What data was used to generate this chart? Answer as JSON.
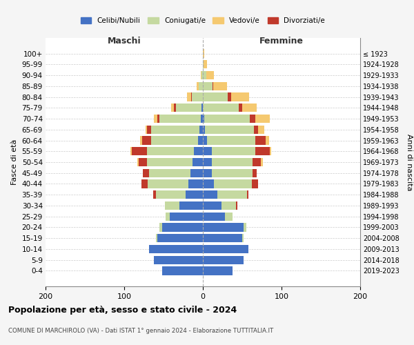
{
  "age_groups_bottom_to_top": [
    "0-4",
    "5-9",
    "10-14",
    "15-19",
    "20-24",
    "25-29",
    "30-34",
    "35-39",
    "40-44",
    "45-49",
    "50-54",
    "55-59",
    "60-64",
    "65-69",
    "70-74",
    "75-79",
    "80-84",
    "85-89",
    "90-94",
    "95-99",
    "100+"
  ],
  "birth_years_bottom_to_top": [
    "2019-2023",
    "2014-2018",
    "2009-2013",
    "2004-2008",
    "1999-2003",
    "1994-1998",
    "1989-1993",
    "1984-1988",
    "1979-1983",
    "1974-1978",
    "1969-1973",
    "1964-1968",
    "1959-1963",
    "1954-1958",
    "1949-1953",
    "1944-1948",
    "1939-1943",
    "1934-1938",
    "1929-1933",
    "1924-1928",
    "≤ 1923"
  ],
  "colors": {
    "celibi": "#4472C4",
    "coniugati": "#c5d9a0",
    "vedovi": "#f5c970",
    "divorziati": "#c0392b"
  },
  "maschi_celibi": [
    52,
    62,
    68,
    58,
    52,
    42,
    30,
    22,
    18,
    16,
    13,
    11,
    6,
    4,
    3,
    2,
    0,
    0,
    0,
    0,
    0
  ],
  "maschi_coniugati": [
    0,
    0,
    0,
    2,
    3,
    5,
    18,
    38,
    52,
    52,
    58,
    60,
    60,
    62,
    52,
    32,
    14,
    5,
    2,
    0,
    0
  ],
  "maschi_vedovi": [
    0,
    0,
    0,
    0,
    0,
    0,
    0,
    0,
    0,
    0,
    1,
    2,
    3,
    2,
    4,
    3,
    5,
    3,
    1,
    0,
    0
  ],
  "maschi_divorziati": [
    0,
    0,
    0,
    0,
    0,
    0,
    0,
    3,
    8,
    8,
    11,
    19,
    11,
    5,
    3,
    3,
    1,
    0,
    0,
    0,
    0
  ],
  "femmine_celibi": [
    38,
    52,
    58,
    50,
    52,
    28,
    24,
    18,
    14,
    11,
    11,
    11,
    5,
    3,
    2,
    0,
    0,
    0,
    0,
    0,
    0
  ],
  "femmine_coniugati": [
    0,
    0,
    0,
    2,
    3,
    10,
    18,
    38,
    48,
    52,
    52,
    56,
    62,
    62,
    58,
    46,
    32,
    12,
    4,
    1,
    0
  ],
  "femmine_vedovi": [
    0,
    0,
    0,
    0,
    0,
    0,
    0,
    0,
    0,
    0,
    2,
    2,
    4,
    8,
    18,
    18,
    23,
    18,
    10,
    4,
    2
  ],
  "femmine_divorziati": [
    0,
    0,
    0,
    0,
    0,
    0,
    2,
    2,
    8,
    5,
    11,
    18,
    13,
    5,
    7,
    4,
    4,
    1,
    0,
    0,
    0
  ],
  "title": "Popolazione per età, sesso e stato civile - 2024",
  "subtitle": "COMUNE DI MARCHIROLO (VA) - Dati ISTAT 1° gennaio 2024 - Elaborazione TUTTITALIA.IT",
  "label_maschi": "Maschi",
  "label_femmine": "Femmine",
  "ylabel_left": "Fasce di età",
  "ylabel_right": "Anni di nascita",
  "legend_labels": [
    "Celibi/Nubili",
    "Coniugati/e",
    "Vedovi/e",
    "Divorziati/e"
  ],
  "bg_color": "#f5f5f5",
  "plot_bg": "#ffffff"
}
